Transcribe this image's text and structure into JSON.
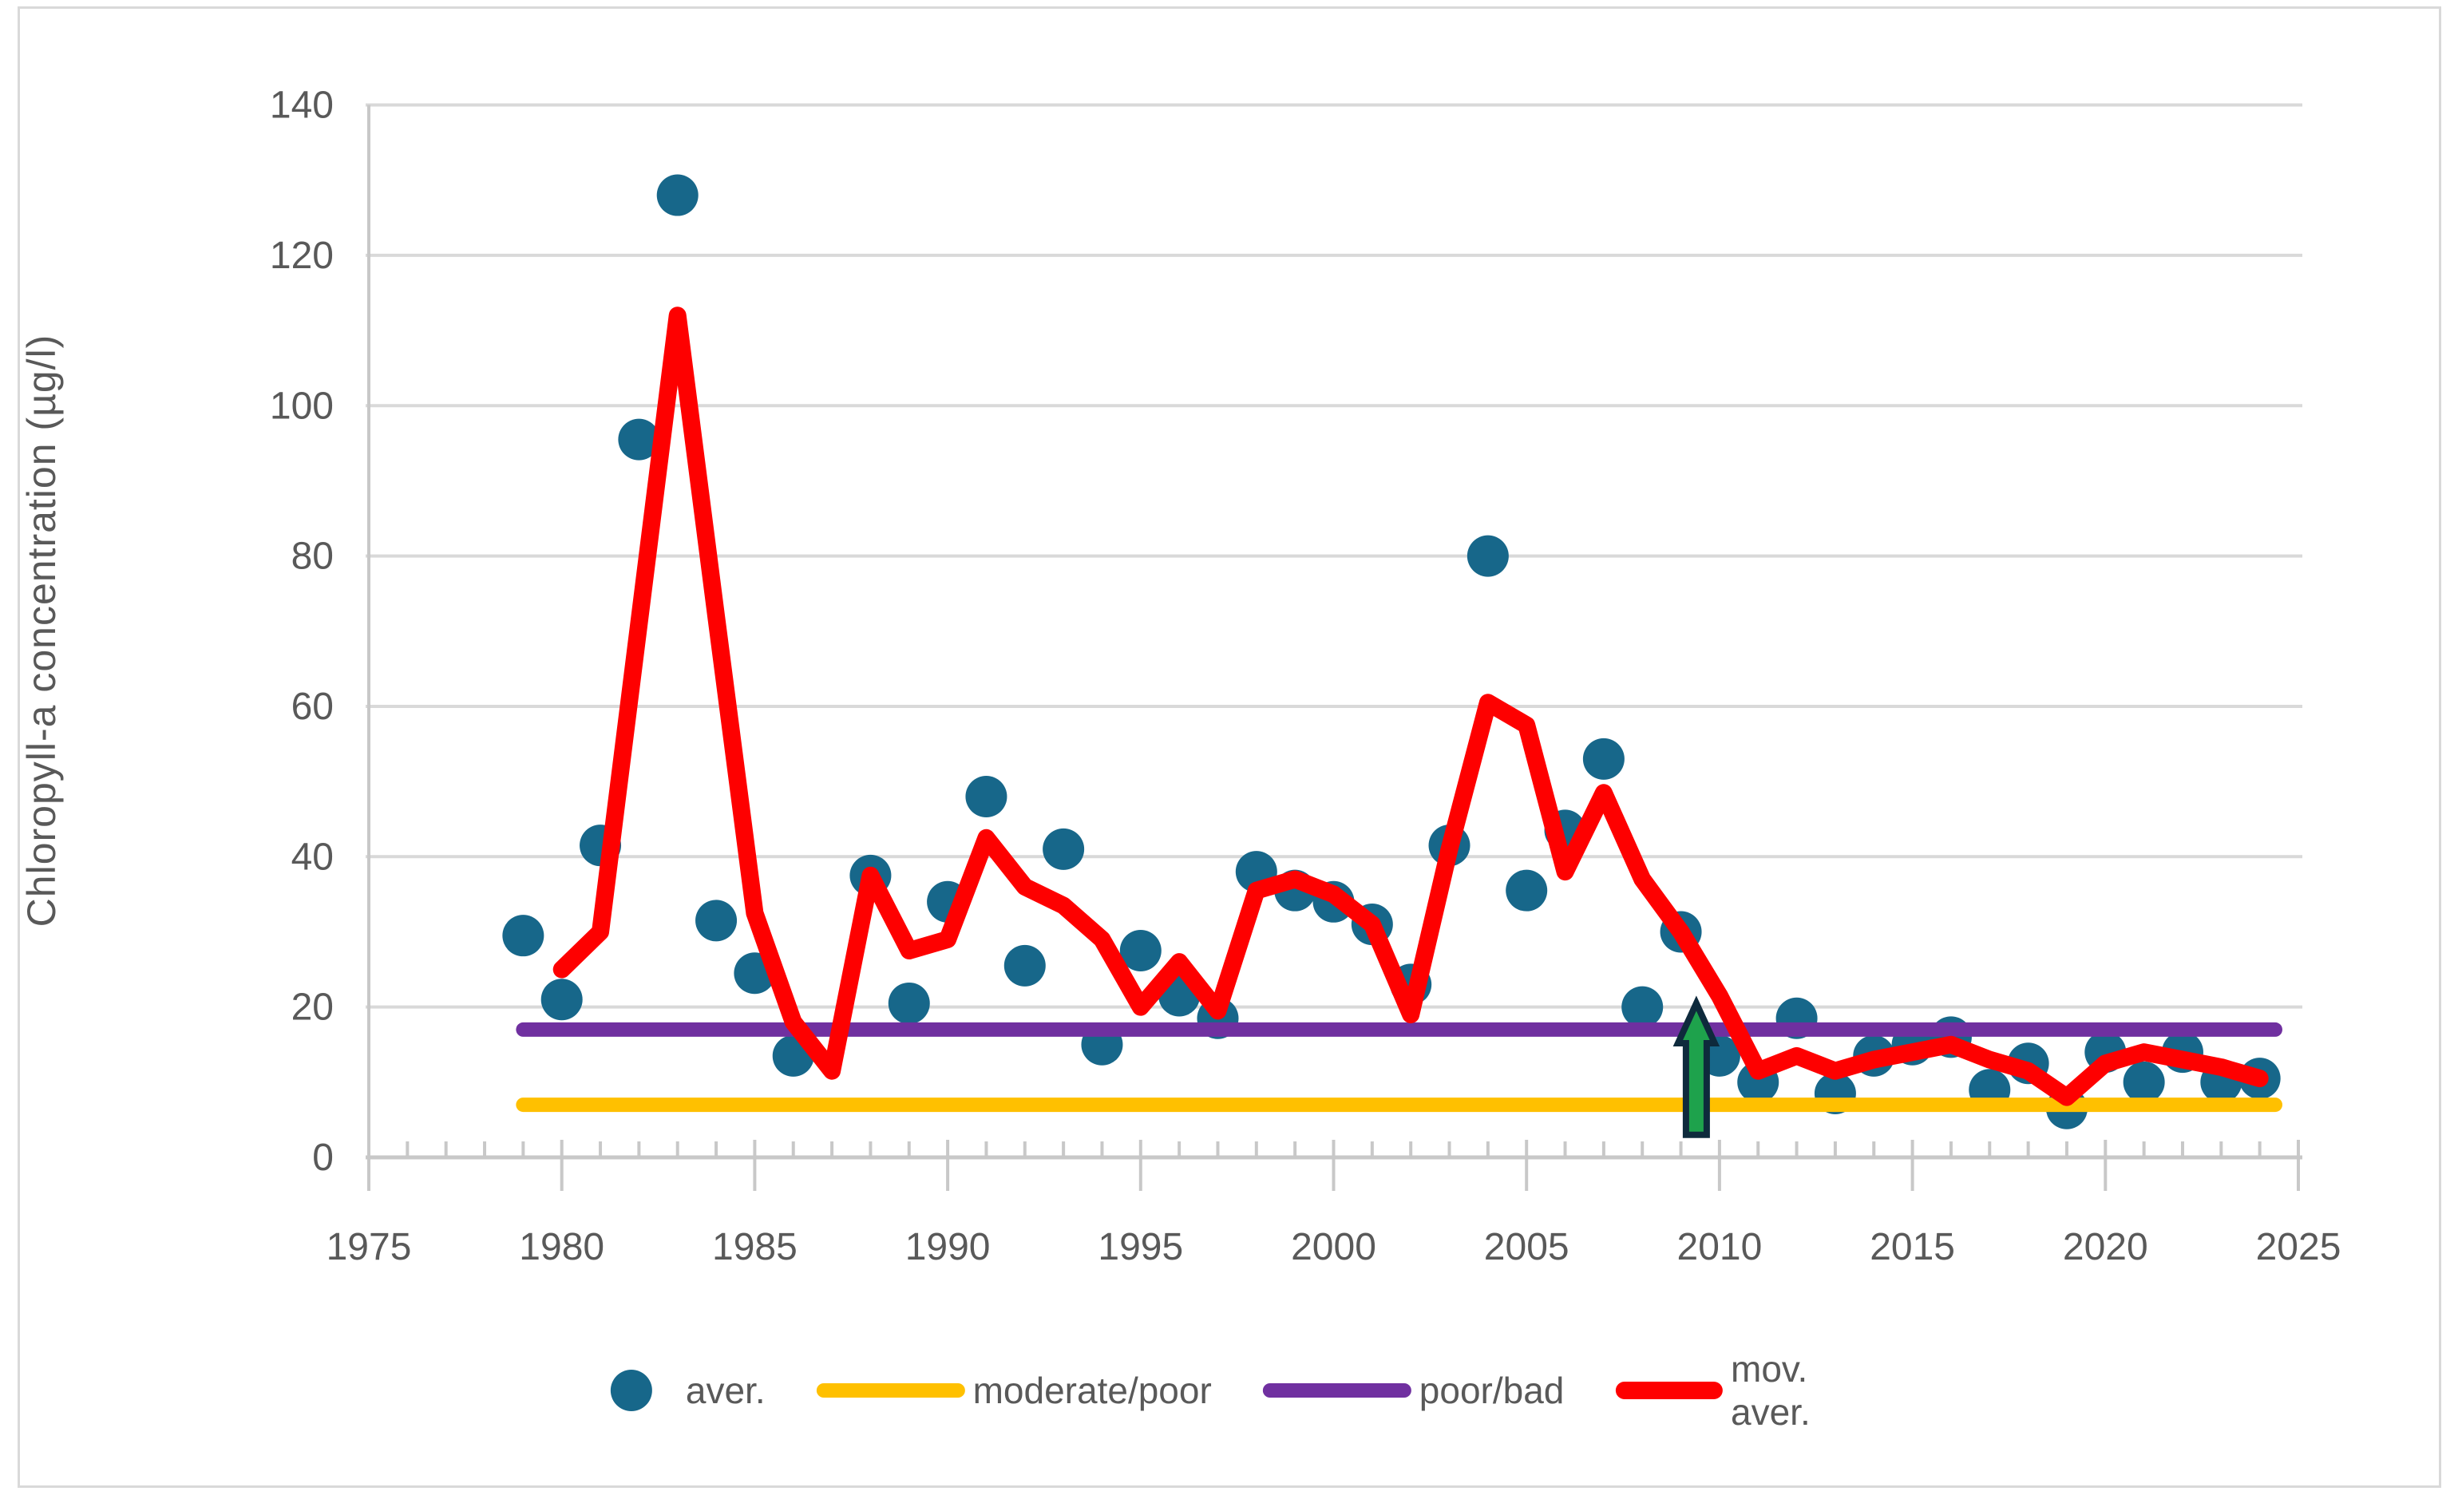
{
  "chart_data": {
    "type": "scatter",
    "title": "",
    "ylabel": "Chloropyll-a concentration (µg/l)",
    "xlabel": "",
    "xlim": [
      1975,
      2025
    ],
    "ylim": [
      0,
      140
    ],
    "y_ticks": [
      0,
      20,
      40,
      60,
      80,
      100,
      120,
      140
    ],
    "x_major_ticks": [
      1975,
      1980,
      1985,
      1990,
      1995,
      2000,
      2005,
      2010,
      2015,
      2020,
      2025
    ],
    "x_minor_tick_step": 1,
    "grid": true,
    "legend_position": "bottom",
    "series": [
      {
        "name": "aver.",
        "type": "scatter",
        "color": "#17678a",
        "points": [
          [
            1979,
            29.5
          ],
          [
            1980,
            21
          ],
          [
            1981,
            41.5
          ],
          [
            1982,
            95.5
          ],
          [
            1983,
            128
          ],
          [
            1984,
            31.5
          ],
          [
            1985,
            24.5
          ],
          [
            1986,
            13.5
          ],
          [
            1988,
            37.5
          ],
          [
            1989,
            20.5
          ],
          [
            1990,
            34
          ],
          [
            1991,
            48
          ],
          [
            1992,
            25.5
          ],
          [
            1993,
            41
          ],
          [
            1994,
            15
          ],
          [
            1995,
            27.5
          ],
          [
            1996,
            21.5
          ],
          [
            1997,
            18.5
          ],
          [
            1998,
            38
          ],
          [
            1999,
            35.5
          ],
          [
            2000,
            34
          ],
          [
            2001,
            31
          ],
          [
            2002,
            23
          ],
          [
            2003,
            41.5
          ],
          [
            2004,
            80
          ],
          [
            2005,
            35.5
          ],
          [
            2006,
            43.5
          ],
          [
            2007,
            53
          ],
          [
            2008,
            20
          ],
          [
            2009,
            30
          ],
          [
            2010,
            13.5
          ],
          [
            2011,
            10
          ],
          [
            2012,
            18.5
          ],
          [
            2013,
            8.5
          ],
          [
            2014,
            13.5
          ],
          [
            2015,
            15
          ],
          [
            2016,
            16
          ],
          [
            2017,
            9
          ],
          [
            2018,
            12.5
          ],
          [
            2019,
            6.5
          ],
          [
            2020,
            14
          ],
          [
            2021,
            10
          ],
          [
            2022,
            14
          ],
          [
            2023,
            10
          ],
          [
            2024,
            10.5
          ]
        ]
      },
      {
        "name": "moderate/poor",
        "type": "hline",
        "color": "#ffc000",
        "value": 7,
        "x_start": 1979,
        "x_end": 2024.4
      },
      {
        "name": "poor/bad",
        "type": "hline",
        "color": "#7030a0",
        "value": 17,
        "x_start": 1979,
        "x_end": 2024.4
      },
      {
        "name": "mov. aver.",
        "type": "line",
        "color": "#fe0000",
        "points": [
          [
            1980,
            25
          ],
          [
            1981,
            30
          ],
          [
            1982,
            71
          ],
          [
            1983,
            112
          ],
          [
            1984,
            72
          ],
          [
            1985,
            32.5
          ],
          [
            1986,
            18
          ],
          [
            1987,
            11.5
          ],
          [
            1988,
            37.5
          ],
          [
            1989,
            27.5
          ],
          [
            1990,
            29
          ],
          [
            1991,
            42.5
          ],
          [
            1992,
            36
          ],
          [
            1993,
            33.5
          ],
          [
            1994,
            29
          ],
          [
            1995,
            20
          ],
          [
            1996,
            26
          ],
          [
            1997,
            19.5
          ],
          [
            1998,
            35.5
          ],
          [
            1999,
            37
          ],
          [
            2000,
            35
          ],
          [
            2001,
            31
          ],
          [
            2002,
            19
          ],
          [
            2003,
            41
          ],
          [
            2004,
            60.5
          ],
          [
            2005,
            57.5
          ],
          [
            2006,
            38
          ],
          [
            2007,
            48.5
          ],
          [
            2008,
            37
          ],
          [
            2009,
            30
          ],
          [
            2010,
            21.5
          ],
          [
            2011,
            11.5
          ],
          [
            2012,
            13.5
          ],
          [
            2013,
            11.5
          ],
          [
            2014,
            13
          ],
          [
            2015,
            14
          ],
          [
            2016,
            15
          ],
          [
            2017,
            13
          ],
          [
            2018,
            11.5
          ],
          [
            2019,
            8
          ],
          [
            2020,
            12.5
          ],
          [
            2021,
            14
          ],
          [
            2022,
            13
          ],
          [
            2023,
            12
          ],
          [
            2024,
            10.5
          ]
        ]
      }
    ],
    "annotation_arrow": {
      "description": "green upward arrow marker",
      "year": 2009.4,
      "from_value": 3,
      "to_value": 20.5,
      "fill": "#1ea24c",
      "outline": "#0e2a3c"
    }
  },
  "legend": {
    "items": [
      {
        "label": "aver.",
        "marker": "dot",
        "color": "#17678a"
      },
      {
        "label": "moderate/poor",
        "marker": "line",
        "color": "#ffc000"
      },
      {
        "label": "poor/bad",
        "marker": "line",
        "color": "#7030a0"
      },
      {
        "label": "mov. aver.",
        "marker": "line-thick",
        "color": "#fe0000"
      }
    ]
  },
  "style_colors": {
    "gridline": "#d9d9d9",
    "axis_line": "#c8c8c8",
    "tick_text": "#595959"
  }
}
